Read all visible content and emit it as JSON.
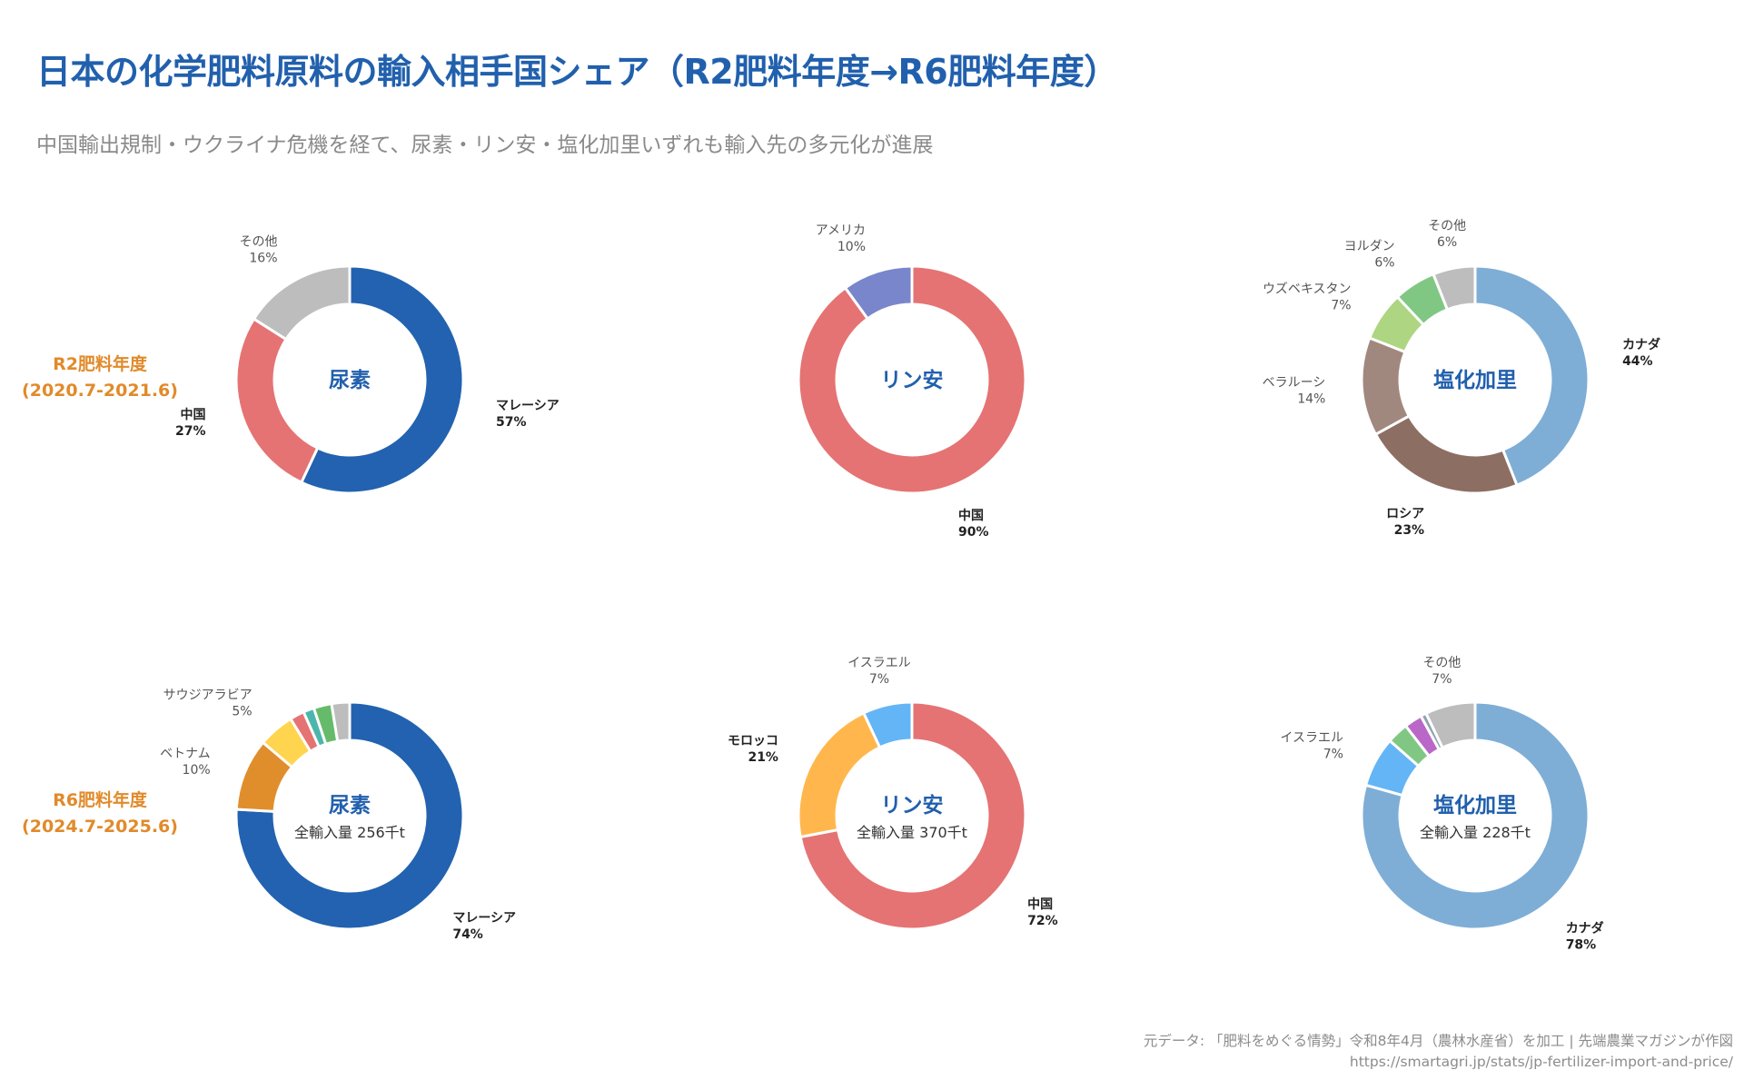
{
  "title": "日本の化学肥料原料の輸入相手国シェア（R2肥料年度→R6肥料年度）",
  "subtitle": "中国輸出規制・ウクライナ危機を経て、尿素・リン安・塩化加里いずれも輸入先の多元化が進展",
  "source_note": "元データ: 「肥料をめぐる情勢」令和8年4月（農林水産省）を加工 | 先端農業マガジンが作図",
  "source_url": "https://smartagri.jp/stats/jp-fertilizer-import-and-price/",
  "rows": [
    {
      "label_line1": "R2肥料年度",
      "label_line2": "(2020.7-2021.6)",
      "color": "#e18a2a"
    },
    {
      "label_line1": "R6肥料年度",
      "label_line2": "(2024.7-2025.6)",
      "color": "#e18a2a"
    }
  ],
  "chart_data": [
    {
      "type": "pie",
      "variant": "donut",
      "title": "尿素",
      "period": "R2肥料年度 (2020.7-2021.6)",
      "slices": [
        {
          "name": "マレーシア",
          "value": 57,
          "label": "57%",
          "color": "#2262b0",
          "bold": true
        },
        {
          "name": "中国",
          "value": 27,
          "label": "27%",
          "color": "#e57373",
          "bold": true
        },
        {
          "name": "その他",
          "value": 16,
          "label": "16%",
          "color": "#bdbdbd",
          "bold": false
        }
      ]
    },
    {
      "type": "pie",
      "variant": "donut",
      "title": "リン安",
      "period": "R2肥料年度 (2020.7-2021.6)",
      "slices": [
        {
          "name": "中国",
          "value": 90,
          "label": "90%",
          "color": "#e57373",
          "bold": true
        },
        {
          "name": "アメリカ",
          "value": 10,
          "label": "10%",
          "color": "#7986cb",
          "bold": false
        }
      ]
    },
    {
      "type": "pie",
      "variant": "donut",
      "title": "塩化加里",
      "period": "R2肥料年度 (2020.7-2021.6)",
      "slices": [
        {
          "name": "カナダ",
          "value": 44,
          "label": "44%",
          "color": "#7eaed6",
          "bold": true
        },
        {
          "name": "ロシア",
          "value": 23,
          "label": "23%",
          "color": "#8d6e63",
          "bold": true
        },
        {
          "name": "ベラルーシ",
          "value": 14,
          "label": "14%",
          "color": "#a1887f",
          "bold": false
        },
        {
          "name": "ウズベキスタン",
          "value": 7,
          "label": "7%",
          "color": "#aed581",
          "bold": false
        },
        {
          "name": "ヨルダン",
          "value": 6,
          "label": "6%",
          "color": "#81c784",
          "bold": false
        },
        {
          "name": "その他",
          "value": 6,
          "label": "6%",
          "color": "#bdbdbd",
          "bold": false
        }
      ]
    },
    {
      "type": "pie",
      "variant": "donut",
      "title": "尿素",
      "total": "全輸入量 256千t",
      "period": "R6肥料年度 (2024.7-2025.6)",
      "slices": [
        {
          "name": "マレーシア",
          "value": 74,
          "label": "74%",
          "color": "#2262b0",
          "bold": true
        },
        {
          "name": "ベトナム",
          "value": 10,
          "label": "10%",
          "color": "#e08e2b",
          "bold": false
        },
        {
          "name": "サウジアラビア",
          "value": 5,
          "label": "5%",
          "color": "#ffd54f",
          "bold": false
        },
        {
          "name": "",
          "value": 2,
          "label": "",
          "color": "#e57373",
          "bold": false
        },
        {
          "name": "",
          "value": 1.5,
          "label": "",
          "color": "#4db6ac",
          "bold": false
        },
        {
          "name": "",
          "value": 2.5,
          "label": "",
          "color": "#66bb6a",
          "bold": false
        },
        {
          "name": "",
          "value": 2.5,
          "label": "",
          "color": "#bdbdbd",
          "bold": false
        }
      ]
    },
    {
      "type": "pie",
      "variant": "donut",
      "title": "リン安",
      "total": "全輸入量 370千t",
      "period": "R6肥料年度 (2024.7-2025.6)",
      "slices": [
        {
          "name": "中国",
          "value": 72,
          "label": "72%",
          "color": "#e57373",
          "bold": true
        },
        {
          "name": "モロッコ",
          "value": 21,
          "label": "21%",
          "color": "#ffb74d",
          "bold": true
        },
        {
          "name": "イスラエル",
          "value": 7,
          "label": "7%",
          "color": "#64b5f6",
          "bold": false
        }
      ]
    },
    {
      "type": "pie",
      "variant": "donut",
      "title": "塩化加里",
      "total": "全輸入量 228千t",
      "period": "R6肥料年度 (2024.7-2025.6)",
      "slices": [
        {
          "name": "カナダ",
          "value": 78,
          "label": "78%",
          "color": "#7eaed6",
          "bold": true
        },
        {
          "name": "イスラエル",
          "value": 7,
          "label": "7%",
          "color": "#64b5f6",
          "bold": false
        },
        {
          "name": "",
          "value": 3,
          "label": "",
          "color": "#81c784",
          "bold": false
        },
        {
          "name": "",
          "value": 2.5,
          "label": "",
          "color": "#ba68c8",
          "bold": false
        },
        {
          "name": "",
          "value": 0.8,
          "label": "",
          "color": "#90a4ae",
          "bold": false
        },
        {
          "name": "その他",
          "value": 7,
          "label": "7%",
          "color": "#bdbdbd",
          "bold": false
        }
      ]
    }
  ]
}
